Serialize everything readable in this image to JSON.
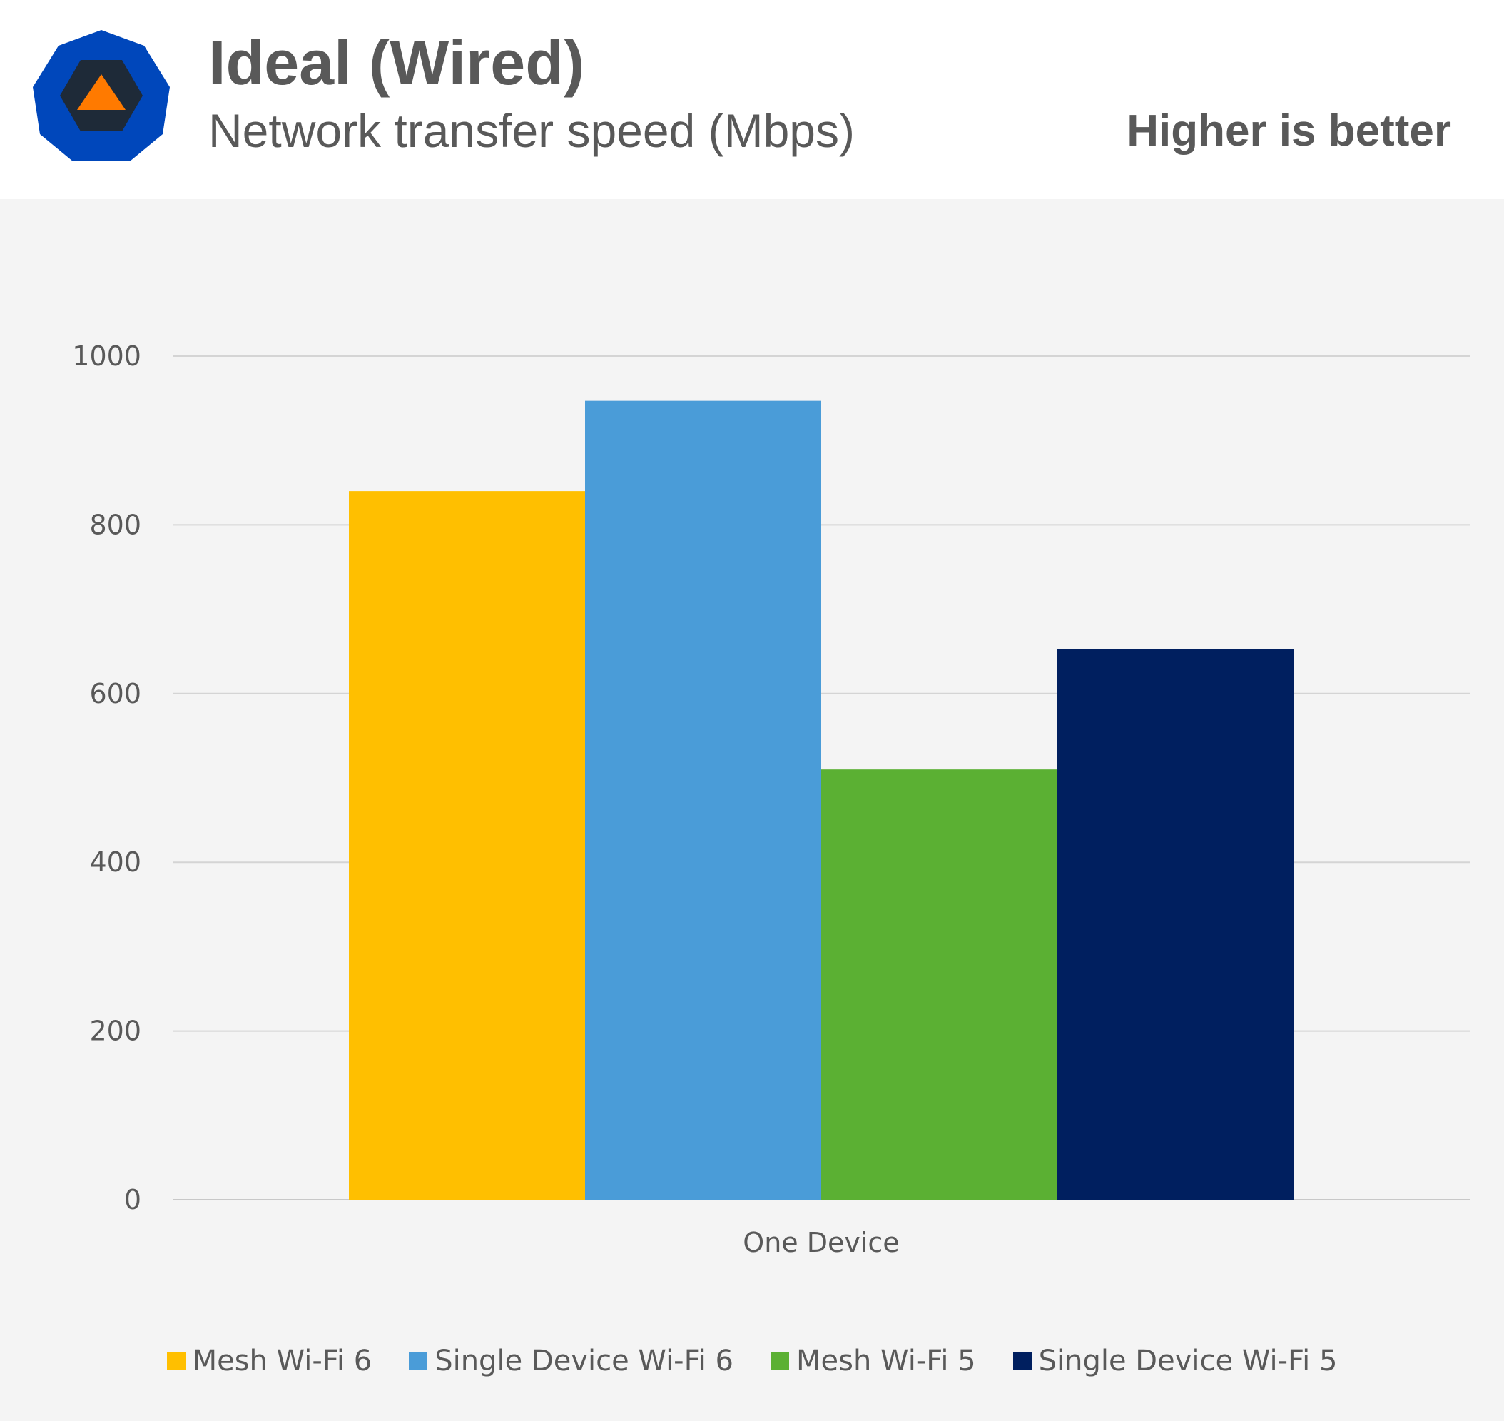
{
  "header": {
    "title": "Ideal (Wired)",
    "subtitle": "Network transfer speed (Mbps)",
    "note": "Higher is better",
    "logo_icon": "hexagon-warning-logo"
  },
  "chart_data": {
    "type": "bar",
    "categories": [
      "One Device"
    ],
    "series": [
      {
        "name": "Mesh Wi-Fi 6",
        "values": [
          840
        ],
        "color": "#FFBF00"
      },
      {
        "name": "Single Device Wi-Fi 6",
        "values": [
          947
        ],
        "color": "#4A9CD8"
      },
      {
        "name": "Mesh Wi-Fi 5",
        "values": [
          510
        ],
        "color": "#5BB033"
      },
      {
        "name": "Single Device Wi-Fi 5",
        "values": [
          653
        ],
        "color": "#001F5F"
      }
    ],
    "title": "Ideal (Wired)",
    "subtitle": "Network transfer speed (Mbps)",
    "xlabel": "",
    "ylabel": "",
    "ylim": [
      0,
      1000
    ],
    "yticks": [
      0,
      200,
      400,
      600,
      800,
      1000
    ],
    "grid": true,
    "legend_position": "bottom"
  }
}
